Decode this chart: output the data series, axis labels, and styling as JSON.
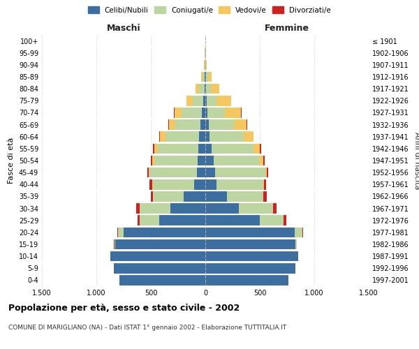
{
  "age_groups": [
    "0-4",
    "5-9",
    "10-14",
    "15-19",
    "20-24",
    "25-29",
    "30-34",
    "35-39",
    "40-44",
    "45-49",
    "50-54",
    "55-59",
    "60-64",
    "65-69",
    "70-74",
    "75-79",
    "80-84",
    "85-89",
    "90-94",
    "95-99",
    "100+"
  ],
  "birth_years": [
    "1997-2001",
    "1992-1996",
    "1987-1991",
    "1982-1986",
    "1977-1981",
    "1972-1976",
    "1967-1971",
    "1962-1966",
    "1957-1961",
    "1952-1956",
    "1947-1951",
    "1942-1946",
    "1937-1941",
    "1932-1936",
    "1927-1931",
    "1922-1926",
    "1917-1921",
    "1912-1916",
    "1907-1911",
    "1902-1906",
    "≤ 1901"
  ],
  "maschi_celibi": [
    790,
    840,
    870,
    830,
    750,
    420,
    320,
    200,
    100,
    80,
    70,
    65,
    55,
    45,
    35,
    18,
    8,
    5,
    3,
    2,
    2
  ],
  "maschi_coniugati": [
    0,
    0,
    0,
    5,
    50,
    180,
    280,
    280,
    380,
    430,
    400,
    370,
    310,
    230,
    180,
    100,
    50,
    20,
    5,
    2,
    0
  ],
  "maschi_vedovi": [
    0,
    0,
    0,
    0,
    0,
    1,
    2,
    3,
    5,
    10,
    20,
    35,
    50,
    60,
    70,
    55,
    30,
    15,
    2,
    0,
    0
  ],
  "maschi_divorziati": [
    0,
    0,
    0,
    2,
    5,
    20,
    30,
    20,
    25,
    15,
    10,
    8,
    5,
    3,
    2,
    0,
    0,
    0,
    0,
    0,
    0
  ],
  "femmine_celibi": [
    760,
    830,
    850,
    830,
    820,
    500,
    310,
    200,
    100,
    90,
    75,
    60,
    40,
    30,
    20,
    15,
    6,
    5,
    3,
    2,
    1
  ],
  "femmine_coniugati": [
    0,
    0,
    0,
    10,
    70,
    220,
    310,
    330,
    430,
    460,
    420,
    380,
    310,
    230,
    160,
    90,
    45,
    18,
    5,
    2,
    0
  ],
  "femmine_vedovi": [
    0,
    0,
    0,
    0,
    0,
    1,
    2,
    4,
    8,
    15,
    35,
    60,
    90,
    120,
    150,
    130,
    80,
    35,
    8,
    3,
    1
  ],
  "femmine_divorziati": [
    0,
    0,
    0,
    2,
    5,
    20,
    30,
    30,
    20,
    15,
    15,
    10,
    5,
    3,
    2,
    1,
    0,
    0,
    0,
    0,
    0
  ],
  "colors": {
    "celibi": "#3d6ea0",
    "coniugati": "#bdd5a0",
    "vedovi": "#f5c760",
    "divorziati": "#cc2222"
  },
  "title": "Popolazione per età, sesso e stato civile - 2002",
  "subtitle": "COMUNE DI MARIGLIANO (NA) - Dati ISTAT 1° gennaio 2002 - Elaborazione TUTTITALIA.IT",
  "xlabel_left": "Maschi",
  "xlabel_right": "Femmine",
  "ylabel_left": "Fasce di età",
  "ylabel_right": "Anni di nascita",
  "xlim": 1500,
  "background_color": "#ffffff",
  "grid_color": "#cccccc"
}
